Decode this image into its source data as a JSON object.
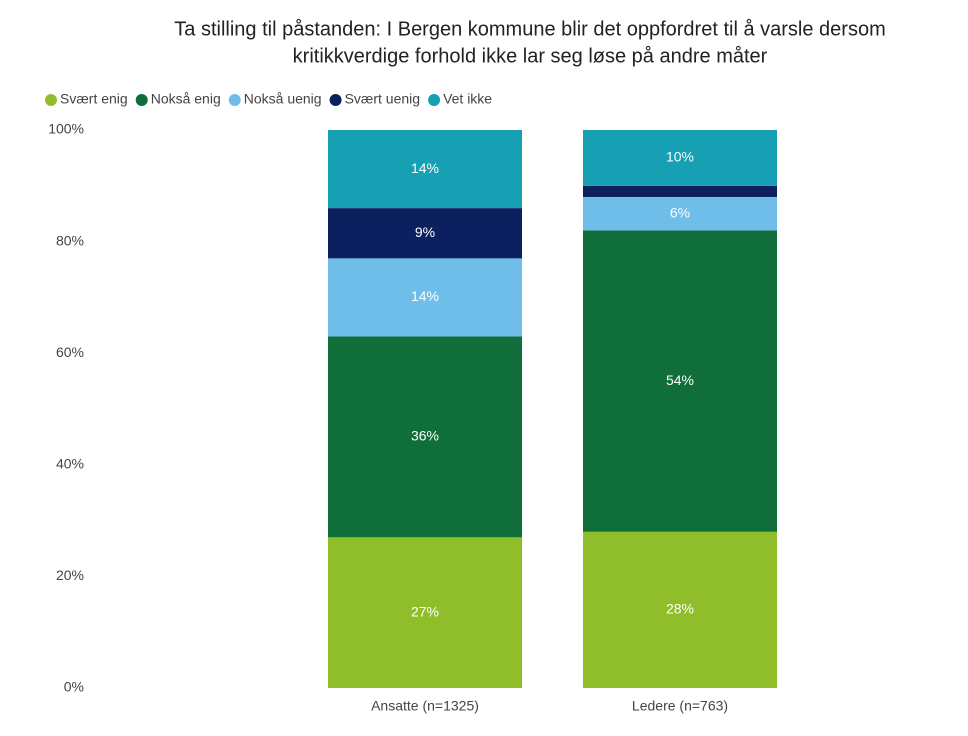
{
  "chart_data": {
    "type": "stacked_bar",
    "title": [
      "Ta stilling til påstanden: I Bergen kommune blir det oppfordret til å varsle dersom",
      "kritikkverdige forhold ikke lar seg løse på andre måter"
    ],
    "categories": [
      "Ansatte (n=1325)",
      "Ledere (n=763)"
    ],
    "series": [
      {
        "name": "Svært enig",
        "color": "#8fbe2a",
        "values": [
          27,
          28
        ],
        "value_labels": [
          "27%",
          "28%"
        ]
      },
      {
        "name": "Nokså enig",
        "color": "#0f6e39",
        "values": [
          36,
          54
        ],
        "value_labels": [
          "36%",
          "54%"
        ]
      },
      {
        "name": "Nokså uenig",
        "color": "#6fbde9",
        "values": [
          14,
          6
        ],
        "value_labels": [
          "14%",
          "6%"
        ]
      },
      {
        "name": "Svært uenig",
        "color": "#0c1f5f",
        "values": [
          9,
          2
        ],
        "value_labels": [
          "9%",
          null
        ]
      },
      {
        "name": "Vet ikke",
        "color": "#179fb4",
        "values": [
          14,
          10
        ],
        "value_labels": [
          "14%",
          "10%"
        ]
      }
    ],
    "ylim": [
      0,
      100
    ],
    "yticks": [
      {
        "value": 0,
        "label": "0%"
      },
      {
        "value": 20,
        "label": "20%"
      },
      {
        "value": 40,
        "label": "40%"
      },
      {
        "value": 60,
        "label": "60%"
      },
      {
        "value": 80,
        "label": "80%"
      },
      {
        "value": 100,
        "label": "100%"
      }
    ],
    "legend": "top-left"
  }
}
